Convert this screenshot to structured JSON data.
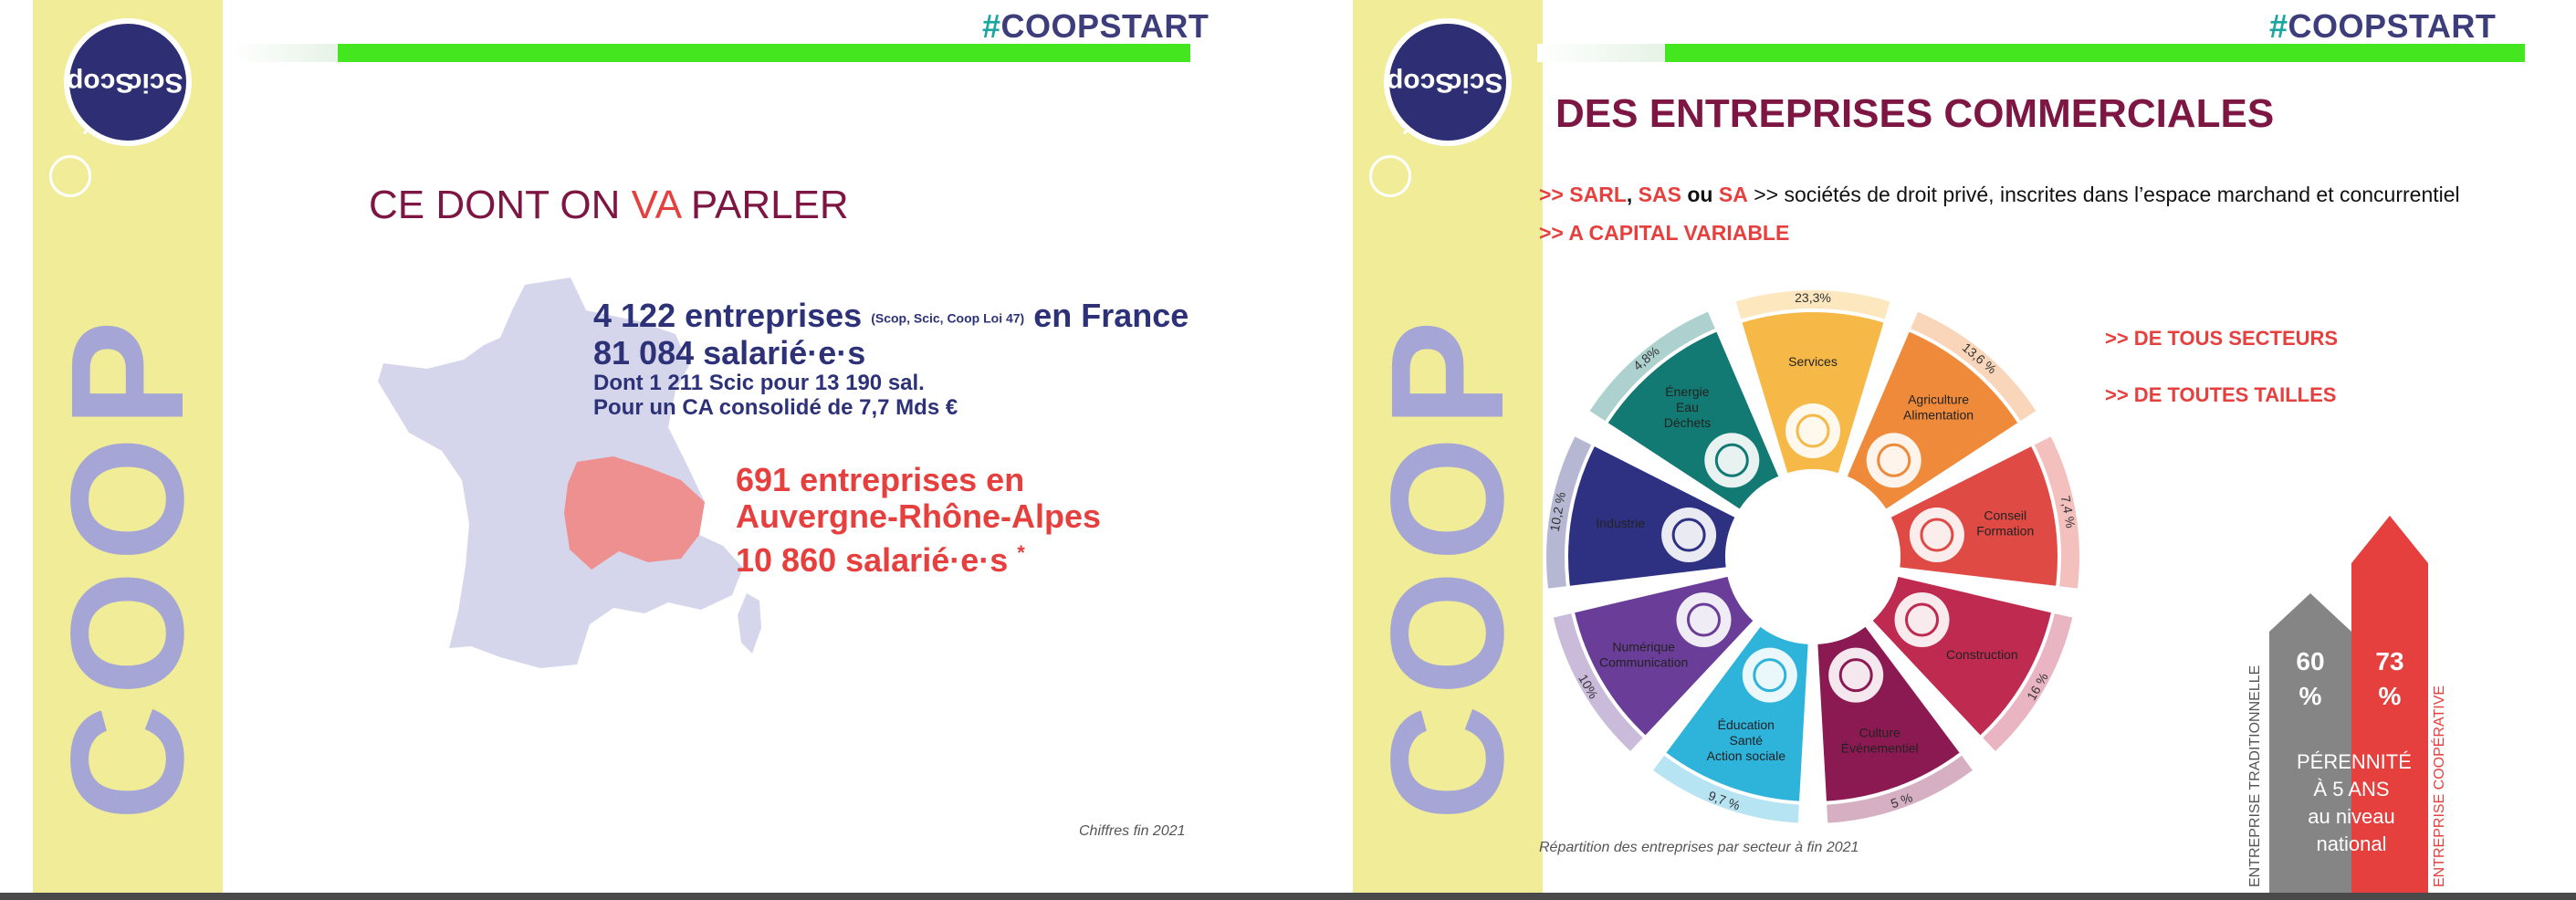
{
  "slide1": {
    "logo_line1": "Scop",
    "logo_line2": "Scic",
    "vertical_word": "COOP",
    "hashtag_symbol": "#",
    "hashtag_word": "COOPSTART",
    "title_part1": "CE DONT ON ",
    "title_part2": "VA",
    "title_part3": " PARLER",
    "france_line1_main": "4 122 entreprises",
    "france_line1_small": "(Scop, Scic, Coop Loi 47)",
    "france_line1_end": "en France",
    "france_line2": "81 084 salarié·e·s",
    "france_line3": "Dont 1 211 Scic pour 13 190 sal.",
    "france_line4": "Pour un CA consolidé de 7,7 Mds €",
    "aura_line1": "691 entreprises en",
    "aura_line2": "Auvergne-Rhône-Alpes",
    "aura_line3": "10 860 salarié·e·s",
    "aura_star": "*",
    "footnote": "Chiffres fin 2021",
    "colors": {
      "band": "#f1ec97",
      "coop": "#a5a6d6",
      "navy": "#2d3278",
      "red": "#e5403e",
      "bordeaux": "#7d1642",
      "green_bar": "#44e620",
      "map": "#d5d6ec",
      "region": "#ef9090"
    }
  },
  "slide2": {
    "logo_line1": "Scop",
    "logo_line2": "Scic",
    "vertical_word": "COOP",
    "hashtag_symbol": "#",
    "hashtag_word": "COOPSTART",
    "title": "DES ENTREPRISES COMMERCIALES",
    "line_a_prefix": ">> ",
    "line_a_sarl": "SARL",
    "line_a_comma": ", ",
    "line_a_sas": "SAS",
    "line_a_ou": " ou ",
    "line_a_sa": "SA",
    "line_a_rest": " >> sociétés de droit privé, inscrites dans l’espace marchand et concurrentiel",
    "line_b": ">> A CAPITAL VARIABLE",
    "sectors_line": ">> DE TOUS SECTEURS",
    "sizes_line": ">> DE TOUTES TAILLES",
    "wheel_caption": "Répartition des entreprises par secteur à fin 2021",
    "segments": [
      {
        "label_lines": [
          "Services"
        ],
        "pct": "23,3%",
        "color": "#f6b947",
        "icon": "recycle-icon"
      },
      {
        "label_lines": [
          "Agriculture",
          "Alimentation"
        ],
        "pct": "13,6 %",
        "color": "#ef8a3a",
        "icon": "wheat-icon"
      },
      {
        "label_lines": [
          "Conseil",
          "Formation"
        ],
        "pct": "7,4 %",
        "color": "#e04a45",
        "icon": "handshake-icon"
      },
      {
        "label_lines": [
          "Construction"
        ],
        "pct": "16 %",
        "color": "#bf2a50",
        "icon": "compass-icon"
      },
      {
        "label_lines": [
          "Culture",
          "Événementiel"
        ],
        "pct": "5 %",
        "color": "#8c1a52",
        "icon": "colosseum-icon"
      },
      {
        "label_lines": [
          "Éducation",
          "Santé",
          "Action sociale"
        ],
        "pct": "9,7 %",
        "color": "#2eb3db",
        "icon": "heart-plus-icon"
      },
      {
        "label_lines": [
          "Numérique",
          "Communication"
        ],
        "pct": "10%",
        "color": "#6a3d98",
        "icon": "globe-icon"
      },
      {
        "label_lines": [
          "Industrie"
        ],
        "pct": "10,2 %",
        "color": "#2e3182",
        "icon": "robot-arm-icon"
      },
      {
        "label_lines": [
          "Énergie",
          "Eau",
          "Déchets"
        ],
        "pct": "4,8%",
        "color": "#127a73",
        "icon": "wind-turbine-icon"
      }
    ],
    "arrow_trad_value": "60",
    "arrow_trad_unit": "%",
    "arrow_coop_value": "73",
    "arrow_coop_unit": "%",
    "perennite_lines": [
      "PÉRENNITÉ",
      "À 5 ANS",
      "au niveau",
      "national"
    ],
    "label_trad": "ENTREPRISE TRADITIONNELLE",
    "label_coop": "ENTREPRISE COOPÉRATIVE",
    "colors": {
      "arrow_trad": "#858585",
      "arrow_coop": "#e5403e"
    }
  }
}
